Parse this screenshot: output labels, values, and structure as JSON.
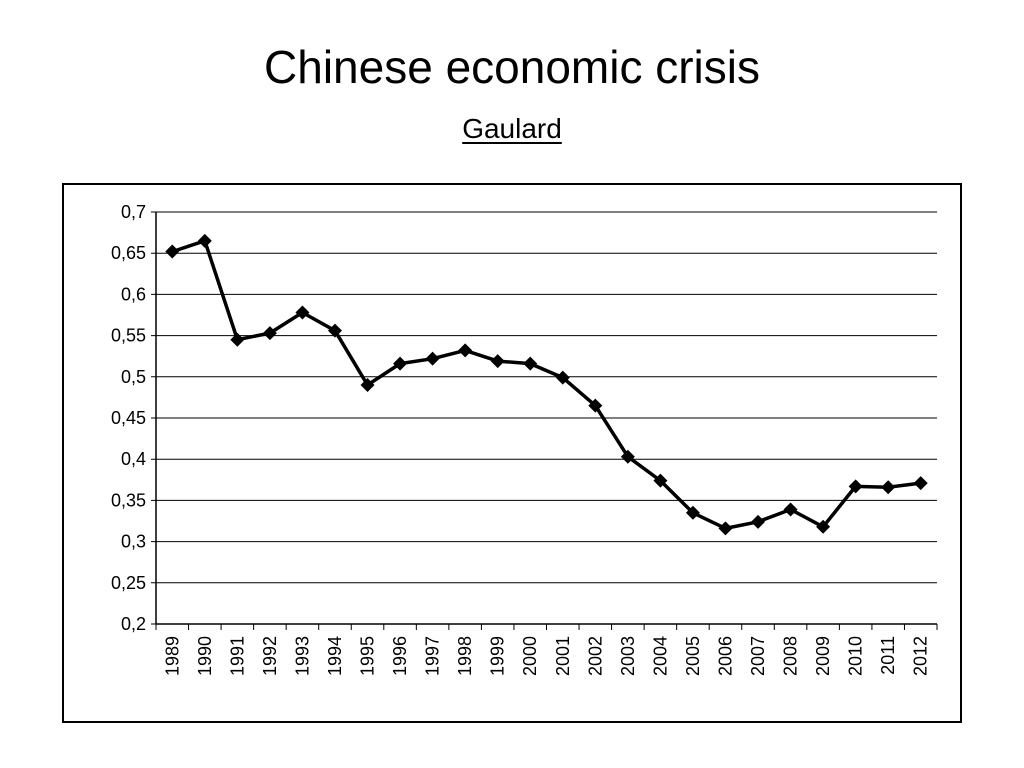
{
  "title": "Chinese economic crisis",
  "subtitle": "Gaulard",
  "chart_data": {
    "type": "line",
    "x": [
      "1989",
      "1990",
      "1991",
      "1992",
      "1993",
      "1994",
      "1995",
      "1996",
      "1997",
      "1998",
      "1999",
      "2000",
      "2001",
      "2002",
      "2003",
      "2004",
      "2005",
      "2006",
      "2007",
      "2008",
      "2009",
      "2010",
      "2011",
      "2012"
    ],
    "series": [
      {
        "values": [
          0.652,
          0.665,
          0.545,
          0.553,
          0.578,
          0.556,
          0.49,
          0.516,
          0.522,
          0.532,
          0.519,
          0.516,
          0.499,
          0.465,
          0.403,
          0.374,
          0.335,
          0.316,
          0.324,
          0.339,
          0.318,
          0.367,
          0.366,
          0.371
        ],
        "color": "#000000",
        "marker": "diamond"
      }
    ],
    "ylim": [
      0.2,
      0.7
    ],
    "yticks": [
      "0,2",
      "0,25",
      "0,3",
      "0,35",
      "0,4",
      "0,45",
      "0,5",
      "0,55",
      "0,6",
      "0,65",
      "0,7"
    ],
    "xlabel": "",
    "ylabel": "",
    "grid": "horizontal",
    "legend": "none"
  }
}
